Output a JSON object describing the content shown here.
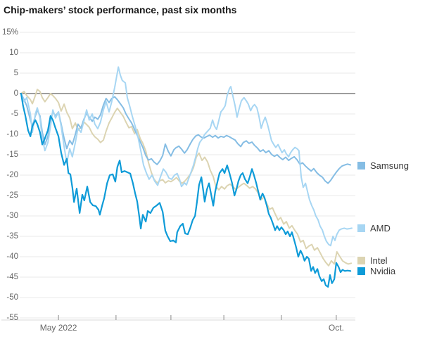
{
  "title": "Chip-makers’ stock performance, past six months",
  "chart_data": {
    "type": "line",
    "title": "Chip-makers’ stock performance, past six months",
    "x_axis": {
      "range_note": "mid-April 2022 to early October 2022",
      "ticks": [
        {
          "t": 0.113,
          "label": "May 2022"
        },
        {
          "t": 0.287,
          "label": ""
        },
        {
          "t": 0.453,
          "label": ""
        },
        {
          "t": 0.613,
          "label": ""
        },
        {
          "t": 0.787,
          "label": ""
        },
        {
          "t": 0.953,
          "label": "Oct."
        }
      ]
    },
    "y_axis": {
      "unit": "%",
      "max": 15,
      "min": -55,
      "step": 5,
      "tick_labels": [
        "15%",
        "10",
        "5",
        "0",
        "-5",
        "-10",
        "-15",
        "-20",
        "-25",
        "-30",
        "-35",
        "-40",
        "-45",
        "-50",
        "-55"
      ],
      "zero_line": true,
      "grid": true
    },
    "legend_position": "right",
    "series": [
      {
        "name": "Samsung",
        "color": "#85bde4",
        "t": [
          0,
          0.009,
          0.017,
          0.028,
          0.034,
          0.043,
          0.049,
          0.057,
          0.064,
          0.072,
          0.081,
          0.089,
          0.096,
          0.104,
          0.113,
          0.121,
          0.13,
          0.138,
          0.147,
          0.155,
          0.164,
          0.172,
          0.181,
          0.189,
          0.198,
          0.206,
          0.215,
          0.223,
          0.232,
          0.24,
          0.249,
          0.257,
          0.266,
          0.274,
          0.283,
          0.291,
          0.3,
          0.309,
          0.317,
          0.326,
          0.334,
          0.343,
          0.351,
          0.36,
          0.368,
          0.377,
          0.385,
          0.394,
          0.402,
          0.411,
          0.419,
          0.428,
          0.436,
          0.445,
          0.453,
          0.462,
          0.468,
          0.477,
          0.485,
          0.494,
          0.502,
          0.511,
          0.519,
          0.528,
          0.536,
          0.545,
          0.553,
          0.562,
          0.57,
          0.579,
          0.587,
          0.596,
          0.604,
          0.613,
          0.621,
          0.63,
          0.638,
          0.647,
          0.655,
          0.664,
          0.672,
          0.681,
          0.689,
          0.698,
          0.706,
          0.715,
          0.723,
          0.732,
          0.74,
          0.749,
          0.757,
          0.766,
          0.774,
          0.783,
          0.791,
          0.8,
          0.809,
          0.817,
          0.826,
          0.834,
          0.843,
          0.851,
          0.86,
          0.868,
          0.877,
          0.885,
          0.894,
          0.902,
          0.911,
          0.919,
          0.928,
          0.936,
          0.945,
          0.953,
          0.962,
          0.97,
          0.979,
          0.987,
          0.996
        ],
        "v": [
          0,
          -1.5,
          -3,
          -6.5,
          -8,
          -5.5,
          -4,
          -5.5,
          -9.5,
          -12.5,
          -10.5,
          -6.5,
          -4.5,
          -5.5,
          -4.5,
          -7.5,
          -11,
          -13.5,
          -11.5,
          -12.5,
          -10,
          -7.5,
          -8.5,
          -6.5,
          -4.8,
          -5.8,
          -6.8,
          -5.8,
          -6.3,
          -5.2,
          -2.8,
          -1.2,
          -2.2,
          -1.2,
          -0.8,
          -1.5,
          -2.5,
          -3.5,
          -5,
          -6.2,
          -7.2,
          -8.8,
          -10.2,
          -11.8,
          -13.2,
          -15.2,
          -16.3,
          -16,
          -16.8,
          -17.4,
          -16.6,
          -15.2,
          -12.4,
          -14.2,
          -15.3,
          -13.8,
          -13.3,
          -12.9,
          -13.6,
          -14.6,
          -13.8,
          -12.4,
          -11.3,
          -10.4,
          -10.1,
          -10.7,
          -10.9,
          -10.5,
          -10.2,
          -10.7,
          -10.3,
          -10.9,
          -10.5,
          -10.7,
          -10.3,
          -10.6,
          -11,
          -11.4,
          -12.3,
          -13,
          -12,
          -11.6,
          -12.2,
          -11.9,
          -12.7,
          -13.4,
          -14.2,
          -13.8,
          -14.5,
          -14,
          -14.9,
          -15.4,
          -15,
          -15.7,
          -16.2,
          -15.6,
          -16.4,
          -15.9,
          -15.5,
          -16.2,
          -17.3,
          -17,
          -17.8,
          -18.4,
          -19,
          -18.4,
          -19.4,
          -20,
          -20.5,
          -21.4,
          -22,
          -21.3,
          -20.2,
          -19.3,
          -18.4,
          -17.8,
          -17.5,
          -17.3,
          -17.5
        ]
      },
      {
        "name": "AMD",
        "color": "#a7d6f3",
        "t": [
          0,
          0.009,
          0.017,
          0.028,
          0.034,
          0.043,
          0.049,
          0.057,
          0.064,
          0.072,
          0.081,
          0.089,
          0.096,
          0.104,
          0.113,
          0.121,
          0.13,
          0.138,
          0.147,
          0.155,
          0.164,
          0.172,
          0.181,
          0.189,
          0.198,
          0.206,
          0.215,
          0.223,
          0.232,
          0.24,
          0.249,
          0.257,
          0.266,
          0.274,
          0.283,
          0.294,
          0.3,
          0.306,
          0.315,
          0.321,
          0.328,
          0.336,
          0.345,
          0.353,
          0.362,
          0.37,
          0.379,
          0.387,
          0.396,
          0.404,
          0.413,
          0.421,
          0.43,
          0.438,
          0.447,
          0.455,
          0.464,
          0.472,
          0.479,
          0.485,
          0.494,
          0.5,
          0.506,
          0.515,
          0.521,
          0.528,
          0.534,
          0.54,
          0.549,
          0.555,
          0.564,
          0.572,
          0.579,
          0.585,
          0.591,
          0.598,
          0.604,
          0.611,
          0.617,
          0.623,
          0.63,
          0.634,
          0.64,
          0.647,
          0.653,
          0.66,
          0.666,
          0.674,
          0.681,
          0.687,
          0.694,
          0.7,
          0.706,
          0.713,
          0.719,
          0.726,
          0.732,
          0.738,
          0.745,
          0.751,
          0.757,
          0.764,
          0.77,
          0.777,
          0.783,
          0.789,
          0.796,
          0.802,
          0.809,
          0.815,
          0.821,
          0.828,
          0.834,
          0.84,
          0.847,
          0.853,
          0.86,
          0.866,
          0.872,
          0.879,
          0.885,
          0.891,
          0.898,
          0.904,
          0.911,
          0.917,
          0.923,
          0.93,
          0.936,
          0.943,
          0.949,
          0.955,
          0.962,
          0.968,
          0.977,
          0.985,
          0.994,
          1.0
        ],
        "v": [
          0,
          -2,
          -1,
          -5,
          -9.5,
          -5,
          -3.5,
          -6,
          -11,
          -14,
          -12,
          -8,
          -4,
          -6,
          -4.5,
          -8,
          -13,
          -17,
          -13.5,
          -15.5,
          -12,
          -8.5,
          -9.5,
          -7,
          -4,
          -6.5,
          -5,
          -7.5,
          -8.6,
          -7,
          -4,
          -2,
          -4.5,
          -2,
          1.5,
          6.5,
          4.5,
          3.2,
          2.6,
          -1,
          -3,
          -5.5,
          -8,
          -10.5,
          -14,
          -17.5,
          -19.5,
          -21,
          -20,
          -21.5,
          -22.5,
          -20.5,
          -18.5,
          -19.3,
          -20.7,
          -21,
          -20,
          -19.6,
          -21,
          -22.8,
          -21.9,
          -22.4,
          -21,
          -19,
          -17.6,
          -15.5,
          -13.5,
          -12,
          -11,
          -10,
          -9.2,
          -8.5,
          -6.5,
          -8,
          -8.8,
          -6.5,
          -4.5,
          -3.8,
          -3,
          -0.5,
          1.2,
          1.7,
          -0.5,
          -3,
          -5.8,
          -3.5,
          -1.8,
          -1,
          -1.8,
          -2.6,
          -4.2,
          -3.2,
          -2.7,
          -3.5,
          -5.5,
          -8.5,
          -7,
          -5.8,
          -7.5,
          -9.5,
          -11.5,
          -12.5,
          -13.2,
          -12.5,
          -13.5,
          -14.5,
          -13.8,
          -14.8,
          -15.5,
          -14.5,
          -13.8,
          -13.2,
          -13.5,
          -14,
          -20.5,
          -23,
          -22,
          -24,
          -26,
          -27.5,
          -28.5,
          -30,
          -31,
          -32.5,
          -33.5,
          -35,
          -36.2,
          -37,
          -37.3,
          -35,
          -36,
          -34.5,
          -33.5,
          -33.2,
          -33,
          -33.2,
          -33.1,
          -33
        ]
      },
      {
        "name": "Intel",
        "color": "#dcd4b2",
        "t": [
          0,
          0.009,
          0.017,
          0.028,
          0.034,
          0.043,
          0.049,
          0.057,
          0.064,
          0.072,
          0.081,
          0.089,
          0.096,
          0.104,
          0.113,
          0.121,
          0.13,
          0.138,
          0.147,
          0.155,
          0.164,
          0.172,
          0.181,
          0.189,
          0.198,
          0.206,
          0.215,
          0.223,
          0.232,
          0.24,
          0.249,
          0.257,
          0.266,
          0.274,
          0.283,
          0.291,
          0.3,
          0.309,
          0.317,
          0.326,
          0.334,
          0.343,
          0.351,
          0.36,
          0.368,
          0.377,
          0.385,
          0.394,
          0.402,
          0.411,
          0.419,
          0.428,
          0.436,
          0.445,
          0.453,
          0.462,
          0.47,
          0.479,
          0.487,
          0.496,
          0.504,
          0.513,
          0.521,
          0.53,
          0.538,
          0.547,
          0.555,
          0.564,
          0.572,
          0.581,
          0.589,
          0.598,
          0.606,
          0.615,
          0.623,
          0.632,
          0.64,
          0.649,
          0.657,
          0.666,
          0.674,
          0.683,
          0.691,
          0.7,
          0.709,
          0.717,
          0.726,
          0.734,
          0.743,
          0.751,
          0.76,
          0.768,
          0.777,
          0.785,
          0.794,
          0.802,
          0.811,
          0.819,
          0.828,
          0.836,
          0.845,
          0.853,
          0.862,
          0.87,
          0.879,
          0.887,
          0.896,
          0.904,
          0.913,
          0.921,
          0.93,
          0.938,
          0.947,
          0.955,
          0.964,
          0.972,
          0.981,
          0.989,
          0.998
        ],
        "v": [
          0,
          0.5,
          -0.5,
          -1.5,
          -2.5,
          -0.5,
          1,
          0.5,
          -1,
          -2,
          -1,
          0,
          -0.5,
          -1.2,
          -2.2,
          -4.3,
          -2.6,
          -4.6,
          -6,
          -8.6,
          -7.2,
          -9,
          -8.2,
          -6.9,
          -7.6,
          -8.3,
          -9.8,
          -10.6,
          -11.2,
          -12,
          -11.4,
          -9.2,
          -7.2,
          -6,
          -4.6,
          -3.6,
          -4.6,
          -5.6,
          -7,
          -8.4,
          -8.1,
          -9.8,
          -8.8,
          -11,
          -12.2,
          -14.1,
          -16.9,
          -19.4,
          -21,
          -21.9,
          -21.4,
          -21.1,
          -21.9,
          -21.4,
          -21.6,
          -21.1,
          -20.6,
          -21.5,
          -22,
          -21.4,
          -20.6,
          -19.6,
          -18.2,
          -15.5,
          -14.6,
          -16.4,
          -15.6,
          -16.8,
          -18.8,
          -20.4,
          -22.8,
          -23.6,
          -22.8,
          -23.4,
          -22.6,
          -22.2,
          -22.8,
          -23.5,
          -23,
          -22.4,
          -22,
          -22.6,
          -23.2,
          -22.8,
          -23.4,
          -24.4,
          -26,
          -25.4,
          -27,
          -28.4,
          -28,
          -29.5,
          -31,
          -30.4,
          -32,
          -31.4,
          -33,
          -32.4,
          -33.6,
          -34.5,
          -36.4,
          -36,
          -38,
          -37.4,
          -37,
          -38.4,
          -37.8,
          -39,
          -40.4,
          -41.4,
          -42.2,
          -41,
          -41.8,
          -38.8,
          -40,
          -41,
          -41.5,
          -41.8,
          -41.6
        ]
      },
      {
        "name": "Nvidia",
        "color": "#0e9bd8",
        "t": [
          0,
          0.006,
          0.013,
          0.021,
          0.028,
          0.034,
          0.043,
          0.049,
          0.057,
          0.064,
          0.072,
          0.081,
          0.089,
          0.096,
          0.104,
          0.113,
          0.121,
          0.13,
          0.138,
          0.143,
          0.149,
          0.155,
          0.16,
          0.168,
          0.177,
          0.185,
          0.191,
          0.2,
          0.209,
          0.217,
          0.226,
          0.234,
          0.238,
          0.245,
          0.251,
          0.26,
          0.268,
          0.277,
          0.285,
          0.291,
          0.298,
          0.304,
          0.313,
          0.321,
          0.33,
          0.338,
          0.345,
          0.351,
          0.357,
          0.362,
          0.368,
          0.377,
          0.383,
          0.391,
          0.4,
          0.409,
          0.419,
          0.428,
          0.436,
          0.443,
          0.451,
          0.46,
          0.468,
          0.472,
          0.481,
          0.489,
          0.496,
          0.504,
          0.511,
          0.519,
          0.526,
          0.532,
          0.538,
          0.545,
          0.551,
          0.555,
          0.562,
          0.568,
          0.574,
          0.581,
          0.587,
          0.594,
          0.6,
          0.609,
          0.615,
          0.623,
          0.63,
          0.638,
          0.645,
          0.651,
          0.657,
          0.664,
          0.67,
          0.677,
          0.685,
          0.691,
          0.698,
          0.704,
          0.711,
          0.717,
          0.723,
          0.73,
          0.736,
          0.743,
          0.749,
          0.755,
          0.762,
          0.768,
          0.774,
          0.781,
          0.787,
          0.794,
          0.8,
          0.806,
          0.813,
          0.819,
          0.826,
          0.832,
          0.838,
          0.845,
          0.851,
          0.857,
          0.864,
          0.87,
          0.877,
          0.883,
          0.889,
          0.896,
          0.902,
          0.909,
          0.915,
          0.921,
          0.928,
          0.934,
          0.94,
          0.947,
          0.953,
          0.96,
          0.966,
          0.972,
          0.979,
          0.987,
          0.996
        ],
        "v": [
          0,
          -3,
          -5.5,
          -9,
          -10.5,
          -8,
          -6.5,
          -7.5,
          -9.5,
          -12.5,
          -11,
          -9,
          -5.5,
          -6.5,
          -8.5,
          -10.5,
          -14.5,
          -17.5,
          -16,
          -19.5,
          -19.8,
          -23,
          -26.6,
          -23.3,
          -29.3,
          -24.8,
          -26.2,
          -22.8,
          -26.6,
          -27.4,
          -27.6,
          -28.5,
          -29.7,
          -27.5,
          -25.7,
          -22,
          -20,
          -19.8,
          -21.6,
          -18,
          -16.4,
          -19.3,
          -19,
          -19.3,
          -19.6,
          -22,
          -24.5,
          -26.5,
          -30,
          -33.1,
          -29.7,
          -31.4,
          -28.8,
          -29.3,
          -28,
          -27.5,
          -26.8,
          -29,
          -33.6,
          -35,
          -36.2,
          -36,
          -36.5,
          -34,
          -32.5,
          -31.9,
          -34.3,
          -34.5,
          -33,
          -31,
          -30,
          -26.5,
          -22.4,
          -20.5,
          -24,
          -26.5,
          -23.5,
          -22,
          -24.5,
          -27.5,
          -24,
          -21.5,
          -19.5,
          -18.5,
          -19.5,
          -17.6,
          -19.5,
          -22,
          -25,
          -23.5,
          -21.5,
          -20,
          -19.5,
          -21,
          -22,
          -20.5,
          -18.5,
          -20,
          -22,
          -24,
          -26,
          -24.5,
          -25.5,
          -27.5,
          -29.5,
          -30.5,
          -32,
          -33.5,
          -32.5,
          -33.5,
          -32.8,
          -33.5,
          -34.5,
          -33.8,
          -35,
          -34,
          -36,
          -37.8,
          -40,
          -38.5,
          -39.5,
          -41,
          -40,
          -40.5,
          -43.5,
          -42.5,
          -44,
          -43,
          -44.8,
          -46,
          -45.5,
          -47,
          -47.4,
          -44.5,
          -46.5,
          -45.5,
          -41.5,
          -42.5,
          -43.8,
          -43.2,
          -43.5,
          -43.4,
          -43.5
        ]
      }
    ]
  },
  "colors": {
    "grid_line": "#eaeaea",
    "zero_line": "#7d7d7d",
    "axis_line": "#d9d9d9",
    "tick_mark": "#8a8a8a",
    "axis_text": "#666666",
    "title_text": "#1a1a1a",
    "legend_text": "#3a3a3a",
    "background": "#ffffff"
  }
}
